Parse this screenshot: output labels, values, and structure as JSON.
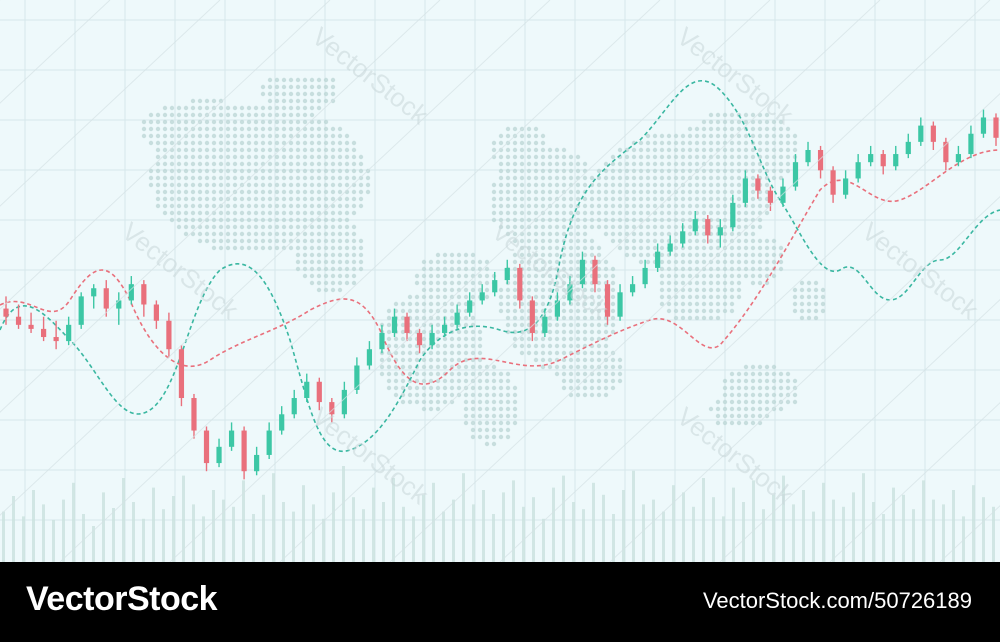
{
  "footer": {
    "brand": "VectorStock",
    "credit": "VectorStock.com/50726189"
  },
  "watermark": {
    "text": "VectorStock"
  },
  "colors": {
    "background": "#eef9fb",
    "bull": "#3cc7a5",
    "bear": "#e9707c",
    "grid": "#d6e7eb",
    "map_dots": "#b9d4d4",
    "volume": "#cbe3df"
  },
  "chart_data": {
    "type": "candlestick",
    "title": "",
    "xlabel": "",
    "ylabel": "",
    "grid": true,
    "ylim": [
      0,
      100
    ],
    "candles": [
      {
        "o": 52,
        "h": 55,
        "l": 48,
        "c": 50
      },
      {
        "o": 50,
        "h": 53,
        "l": 47,
        "c": 48
      },
      {
        "o": 48,
        "h": 51,
        "l": 46,
        "c": 47
      },
      {
        "o": 47,
        "h": 50,
        "l": 44,
        "c": 45
      },
      {
        "o": 45,
        "h": 49,
        "l": 42,
        "c": 44
      },
      {
        "o": 44,
        "h": 50,
        "l": 43,
        "c": 48
      },
      {
        "o": 48,
        "h": 56,
        "l": 47,
        "c": 55
      },
      {
        "o": 55,
        "h": 58,
        "l": 52,
        "c": 57
      },
      {
        "o": 57,
        "h": 59,
        "l": 50,
        "c": 52
      },
      {
        "o": 52,
        "h": 56,
        "l": 48,
        "c": 54
      },
      {
        "o": 54,
        "h": 60,
        "l": 53,
        "c": 58
      },
      {
        "o": 58,
        "h": 59,
        "l": 50,
        "c": 53
      },
      {
        "o": 53,
        "h": 54,
        "l": 47,
        "c": 49
      },
      {
        "o": 49,
        "h": 51,
        "l": 40,
        "c": 42
      },
      {
        "o": 42,
        "h": 43,
        "l": 28,
        "c": 30
      },
      {
        "o": 30,
        "h": 31,
        "l": 20,
        "c": 22
      },
      {
        "o": 22,
        "h": 23,
        "l": 12,
        "c": 14
      },
      {
        "o": 14,
        "h": 20,
        "l": 13,
        "c": 18
      },
      {
        "o": 18,
        "h": 24,
        "l": 17,
        "c": 22
      },
      {
        "o": 22,
        "h": 23,
        "l": 10,
        "c": 12
      },
      {
        "o": 12,
        "h": 18,
        "l": 11,
        "c": 16
      },
      {
        "o": 16,
        "h": 24,
        "l": 15,
        "c": 22
      },
      {
        "o": 22,
        "h": 28,
        "l": 21,
        "c": 26
      },
      {
        "o": 26,
        "h": 32,
        "l": 25,
        "c": 30
      },
      {
        "o": 30,
        "h": 36,
        "l": 29,
        "c": 34
      },
      {
        "o": 34,
        "h": 35,
        "l": 27,
        "c": 29
      },
      {
        "o": 29,
        "h": 30,
        "l": 24,
        "c": 26
      },
      {
        "o": 26,
        "h": 34,
        "l": 25,
        "c": 32
      },
      {
        "o": 32,
        "h": 40,
        "l": 31,
        "c": 38
      },
      {
        "o": 38,
        "h": 44,
        "l": 37,
        "c": 42
      },
      {
        "o": 42,
        "h": 48,
        "l": 41,
        "c": 46
      },
      {
        "o": 46,
        "h": 52,
        "l": 45,
        "c": 50
      },
      {
        "o": 50,
        "h": 51,
        "l": 44,
        "c": 46
      },
      {
        "o": 46,
        "h": 47,
        "l": 41,
        "c": 43
      },
      {
        "o": 43,
        "h": 48,
        "l": 42,
        "c": 46
      },
      {
        "o": 46,
        "h": 50,
        "l": 45,
        "c": 48
      },
      {
        "o": 48,
        "h": 53,
        "l": 47,
        "c": 51
      },
      {
        "o": 51,
        "h": 56,
        "l": 50,
        "c": 54
      },
      {
        "o": 54,
        "h": 58,
        "l": 53,
        "c": 56
      },
      {
        "o": 56,
        "h": 61,
        "l": 55,
        "c": 59
      },
      {
        "o": 59,
        "h": 64,
        "l": 58,
        "c": 62
      },
      {
        "o": 62,
        "h": 63,
        "l": 52,
        "c": 54
      },
      {
        "o": 54,
        "h": 55,
        "l": 44,
        "c": 46
      },
      {
        "o": 46,
        "h": 52,
        "l": 45,
        "c": 50
      },
      {
        "o": 50,
        "h": 56,
        "l": 49,
        "c": 54
      },
      {
        "o": 54,
        "h": 60,
        "l": 53,
        "c": 58
      },
      {
        "o": 58,
        "h": 66,
        "l": 57,
        "c": 64
      },
      {
        "o": 64,
        "h": 65,
        "l": 56,
        "c": 58
      },
      {
        "o": 58,
        "h": 59,
        "l": 48,
        "c": 50
      },
      {
        "o": 50,
        "h": 58,
        "l": 49,
        "c": 56
      },
      {
        "o": 56,
        "h": 60,
        "l": 55,
        "c": 58
      },
      {
        "o": 58,
        "h": 64,
        "l": 57,
        "c": 62
      },
      {
        "o": 62,
        "h": 68,
        "l": 61,
        "c": 66
      },
      {
        "o": 66,
        "h": 70,
        "l": 65,
        "c": 68
      },
      {
        "o": 68,
        "h": 73,
        "l": 67,
        "c": 71
      },
      {
        "o": 71,
        "h": 76,
        "l": 70,
        "c": 74
      },
      {
        "o": 74,
        "h": 75,
        "l": 68,
        "c": 70
      },
      {
        "o": 70,
        "h": 74,
        "l": 67,
        "c": 72
      },
      {
        "o": 72,
        "h": 80,
        "l": 71,
        "c": 78
      },
      {
        "o": 78,
        "h": 86,
        "l": 77,
        "c": 84
      },
      {
        "o": 84,
        "h": 85,
        "l": 79,
        "c": 81
      },
      {
        "o": 81,
        "h": 82,
        "l": 76,
        "c": 78
      },
      {
        "o": 78,
        "h": 84,
        "l": 77,
        "c": 82
      },
      {
        "o": 82,
        "h": 90,
        "l": 81,
        "c": 88
      },
      {
        "o": 88,
        "h": 93,
        "l": 87,
        "c": 91
      },
      {
        "o": 91,
        "h": 92,
        "l": 84,
        "c": 86
      },
      {
        "o": 86,
        "h": 87,
        "l": 78,
        "c": 80
      },
      {
        "o": 80,
        "h": 86,
        "l": 79,
        "c": 84
      },
      {
        "o": 84,
        "h": 90,
        "l": 83,
        "c": 88
      },
      {
        "o": 88,
        "h": 92,
        "l": 87,
        "c": 90
      },
      {
        "o": 90,
        "h": 91,
        "l": 85,
        "c": 87
      },
      {
        "o": 87,
        "h": 92,
        "l": 86,
        "c": 90
      },
      {
        "o": 90,
        "h": 95,
        "l": 89,
        "c": 93
      },
      {
        "o": 93,
        "h": 99,
        "l": 92,
        "c": 97
      },
      {
        "o": 97,
        "h": 98,
        "l": 91,
        "c": 93
      },
      {
        "o": 93,
        "h": 94,
        "l": 86,
        "c": 88
      },
      {
        "o": 88,
        "h": 92,
        "l": 87,
        "c": 90
      },
      {
        "o": 90,
        "h": 97,
        "l": 89,
        "c": 95
      },
      {
        "o": 95,
        "h": 101,
        "l": 94,
        "c": 99
      },
      {
        "o": 99,
        "h": 100,
        "l": 92,
        "c": 94
      }
    ],
    "volume": [
      42,
      55,
      38,
      60,
      48,
      35,
      52,
      66,
      40,
      30,
      58,
      45,
      70,
      50,
      36,
      62,
      44,
      55,
      72,
      48,
      38,
      60,
      52,
      46,
      68,
      40,
      56,
      74,
      50,
      42,
      64,
      48,
      36,
      58,
      80,
      54,
      44,
      62,
      50,
      70,
      46,
      38,
      56,
      66,
      42,
      52,
      74,
      48,
      60,
      40,
      58,
      68,
      46,
      54,
      36,
      62,
      72,
      50,
      44,
      66,
      56,
      40,
      60,
      76,
      48,
      52,
      42,
      64,
      58,
      46,
      70,
      54,
      38,
      62,
      50,
      68,
      44,
      56,
      72,
      48,
      60,
      42,
      66,
      52,
      46,
      58,
      74,
      50,
      40,
      62,
      56,
      44,
      68,
      52,
      48,
      60,
      38,
      64,
      54,
      46
    ]
  }
}
